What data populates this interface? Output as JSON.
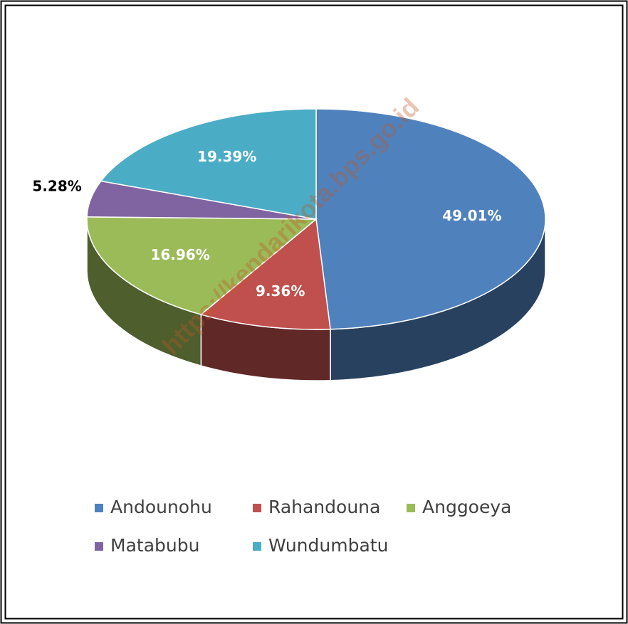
{
  "chart_data": {
    "type": "pie",
    "categories": [
      "Andounohu",
      "Rahandouna",
      "Anggoeya",
      "Matabubu",
      "Wundumbatu"
    ],
    "values": [
      49.01,
      9.36,
      16.96,
      5.28,
      19.39
    ],
    "value_labels": [
      "49.01%",
      "9.36%",
      "16.96%",
      "5.28%",
      "19.39%"
    ],
    "colors": [
      "#4f81bd",
      "#c0504d",
      "#9bbb59",
      "#8064a2",
      "#4bacc6"
    ],
    "watermark": "https://kendarikota.bps.go.id",
    "legend": "bottom"
  }
}
